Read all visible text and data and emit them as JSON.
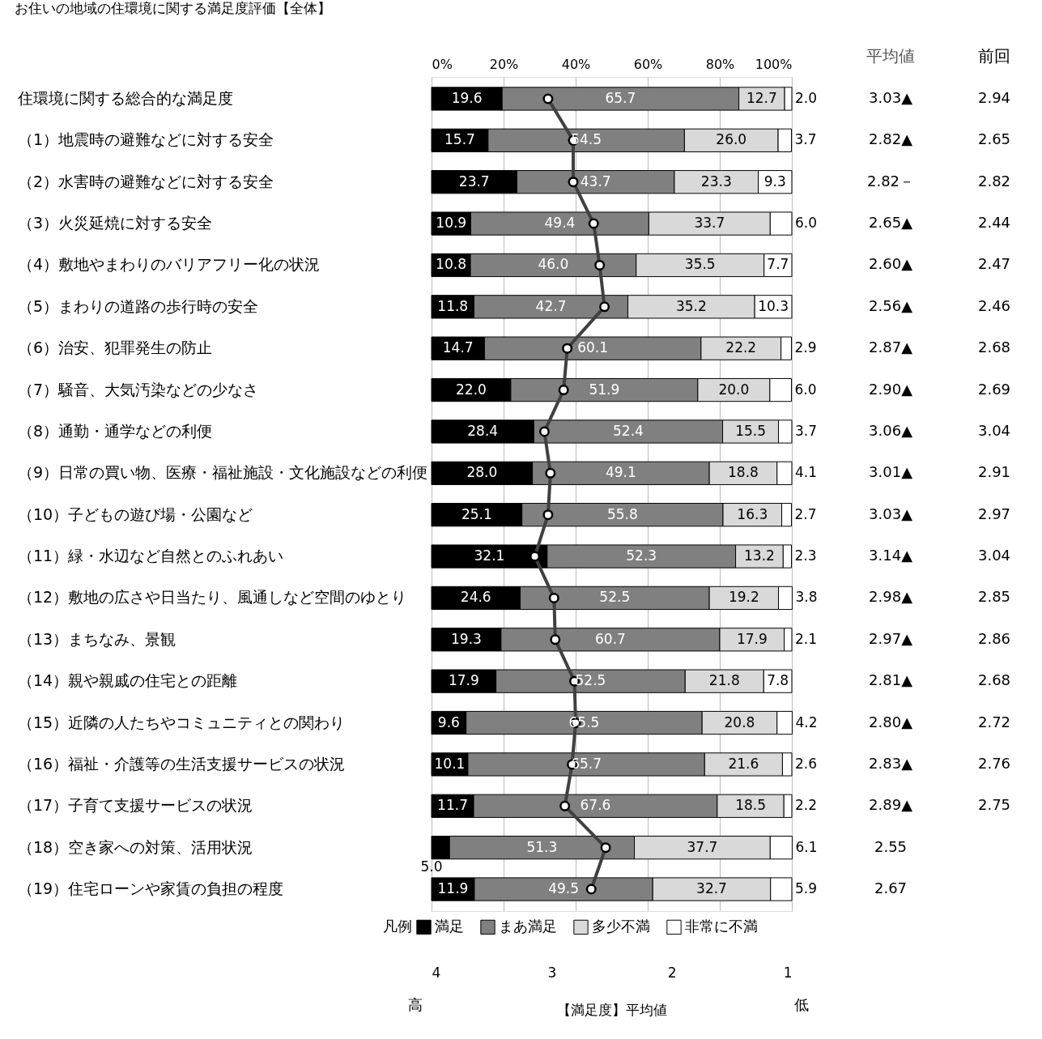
{
  "chart_data": {
    "type": "bar",
    "orientation": "horizontal",
    "stacked": true,
    "title": "お住いの地域の住環境に関する満足度評価【全体】",
    "categories": [
      "住環境に関する総合的な満足度",
      "（1）地震時の避難などに対する安全",
      "（2）水害時の避難などに対する安全",
      "（3）火災延焼に対する安全",
      "（4）敷地やまわりのバリアフリー化の状況",
      "（5）まわりの道路の歩行時の安全",
      "（6）治安、犯罪発生の防止",
      "（7）騒音、大気汚染などの少なさ",
      "（8）通勤・通学などの利便",
      "（9）日常の買い物、医療・福祉施設・文化施設などの利便",
      "（10）子どもの遊び場・公園など",
      "（11）緑・水辺など自然とのふれあい",
      "（12）敷地の広さや日当たり、風通しなど空間のゆとり",
      "（13）まちなみ、景観",
      "（14）親や親戚の住宅との距離",
      "（15）近隣の人たちやコミュニティとの関わり",
      "（16）福祉・介護等の生活支援サービスの状況",
      "（17）子育て支援サービスの状況",
      "（18）空き家への対策、活用状況",
      "（19）住宅ローンや家賃の負担の程度"
    ],
    "series": [
      {
        "name": "満足",
        "color": "#000000",
        "values": [
          19.6,
          15.7,
          23.7,
          10.9,
          10.8,
          11.8,
          14.7,
          22.0,
          28.4,
          28.0,
          25.1,
          32.1,
          24.6,
          19.3,
          17.9,
          9.6,
          10.1,
          11.7,
          5.0,
          11.9
        ],
        "value_labels": [
          "19.6",
          "15.7",
          "23.7",
          "10.9",
          "10.8",
          "11.8",
          "14.7",
          "22.0",
          "28.4",
          "28.0",
          "25.1",
          "32.1",
          "24.6",
          "19.3",
          "17.9",
          "9.6",
          "10.1",
          "11.7",
          "5.0",
          "11.9"
        ]
      },
      {
        "name": "まあ満足",
        "color": "#808080",
        "values": [
          65.7,
          54.5,
          43.7,
          49.4,
          46.0,
          42.7,
          60.1,
          51.9,
          52.4,
          49.1,
          55.8,
          52.3,
          52.5,
          60.7,
          52.5,
          65.5,
          65.7,
          67.6,
          51.3,
          49.5
        ],
        "value_labels": [
          "65.7",
          "54.5",
          "43.7",
          "49.4",
          "46.0",
          "42.7",
          "60.1",
          "51.9",
          "52.4",
          "49.1",
          "55.8",
          "52.3",
          "52.5",
          "60.7",
          "52.5",
          "65.5",
          "65.7",
          "67.6",
          "51.3",
          "49.5"
        ]
      },
      {
        "name": "多少不満",
        "color": "#d9d9d9",
        "values": [
          12.7,
          26.0,
          23.3,
          33.7,
          35.5,
          35.2,
          22.2,
          20.0,
          15.5,
          18.8,
          16.3,
          13.2,
          19.2,
          17.9,
          21.8,
          20.8,
          21.6,
          18.5,
          37.7,
          32.7
        ],
        "value_labels": [
          "12.7",
          "26.0",
          "23.3",
          "33.7",
          "35.5",
          "35.2",
          "22.2",
          "20.0",
          "15.5",
          "18.8",
          "16.3",
          "13.2",
          "19.2",
          "17.9",
          "21.8",
          "20.8",
          "21.6",
          "18.5",
          "37.7",
          "32.7"
        ]
      },
      {
        "name": "非常に不満",
        "color": "#ffffff",
        "values": [
          2.0,
          3.7,
          9.3,
          6.0,
          7.7,
          10.3,
          2.9,
          6.0,
          3.7,
          4.1,
          2.7,
          2.3,
          3.8,
          2.1,
          7.8,
          4.2,
          2.6,
          2.2,
          6.1,
          5.9
        ],
        "value_labels": [
          "2.0",
          "3.7",
          "9.3",
          "6.0",
          "7.7",
          "10.3",
          "2.9",
          "6.0",
          "3.7",
          "4.1",
          "2.7",
          "2.3",
          "3.8",
          "2.1",
          "7.8",
          "4.2",
          "2.6",
          "2.2",
          "6.1",
          "5.9"
        ]
      },
      {
        "name": "平均値",
        "type": "line",
        "axis": "x2",
        "color": "#404040",
        "marker": "circle",
        "values": [
          3.03,
          2.82,
          2.82,
          2.65,
          2.6,
          2.56,
          2.87,
          2.9,
          3.06,
          3.01,
          3.03,
          3.14,
          2.98,
          2.97,
          2.81,
          2.8,
          2.83,
          2.89,
          2.55,
          2.67
        ],
        "value_labels": [
          "3.03▲",
          "2.82▲",
          "2.82－",
          "2.65▲",
          "2.60▲",
          "2.56▲",
          "2.87▲",
          "2.90▲",
          "3.06▲",
          "3.01▲",
          "3.03▲",
          "3.14▲",
          "2.98▲",
          "2.97▲",
          "2.81▲",
          "2.80▲",
          "2.83▲",
          "2.89▲",
          "2.55",
          "2.67"
        ]
      }
    ],
    "xlim": [
      0,
      100
    ],
    "xticks": [
      {
        "value": 0,
        "label": "0%"
      },
      {
        "value": 20,
        "label": "20%"
      },
      {
        "value": 40,
        "label": "40%"
      },
      {
        "value": 60,
        "label": "60%"
      },
      {
        "value": 80,
        "label": "80%"
      },
      {
        "value": 100,
        "label": "100%"
      }
    ],
    "x2lim": [
      4,
      1
    ],
    "x2ticks": [
      4,
      3,
      2,
      1
    ],
    "x2label": "【満足度】平均値",
    "grid": "x",
    "legend": "bottom",
    "legend_title": "凡例",
    "annotations": [
      "高",
      "低",
      "前回",
      "2.94",
      "2.65",
      "2.82",
      "2.44",
      "2.47",
      "2.46",
      "2.68",
      "2.69",
      "3.04",
      "2.91",
      "2.97",
      "3.04",
      "2.85",
      "2.86",
      "2.68",
      "2.72",
      "2.76",
      "2.75"
    ]
  }
}
